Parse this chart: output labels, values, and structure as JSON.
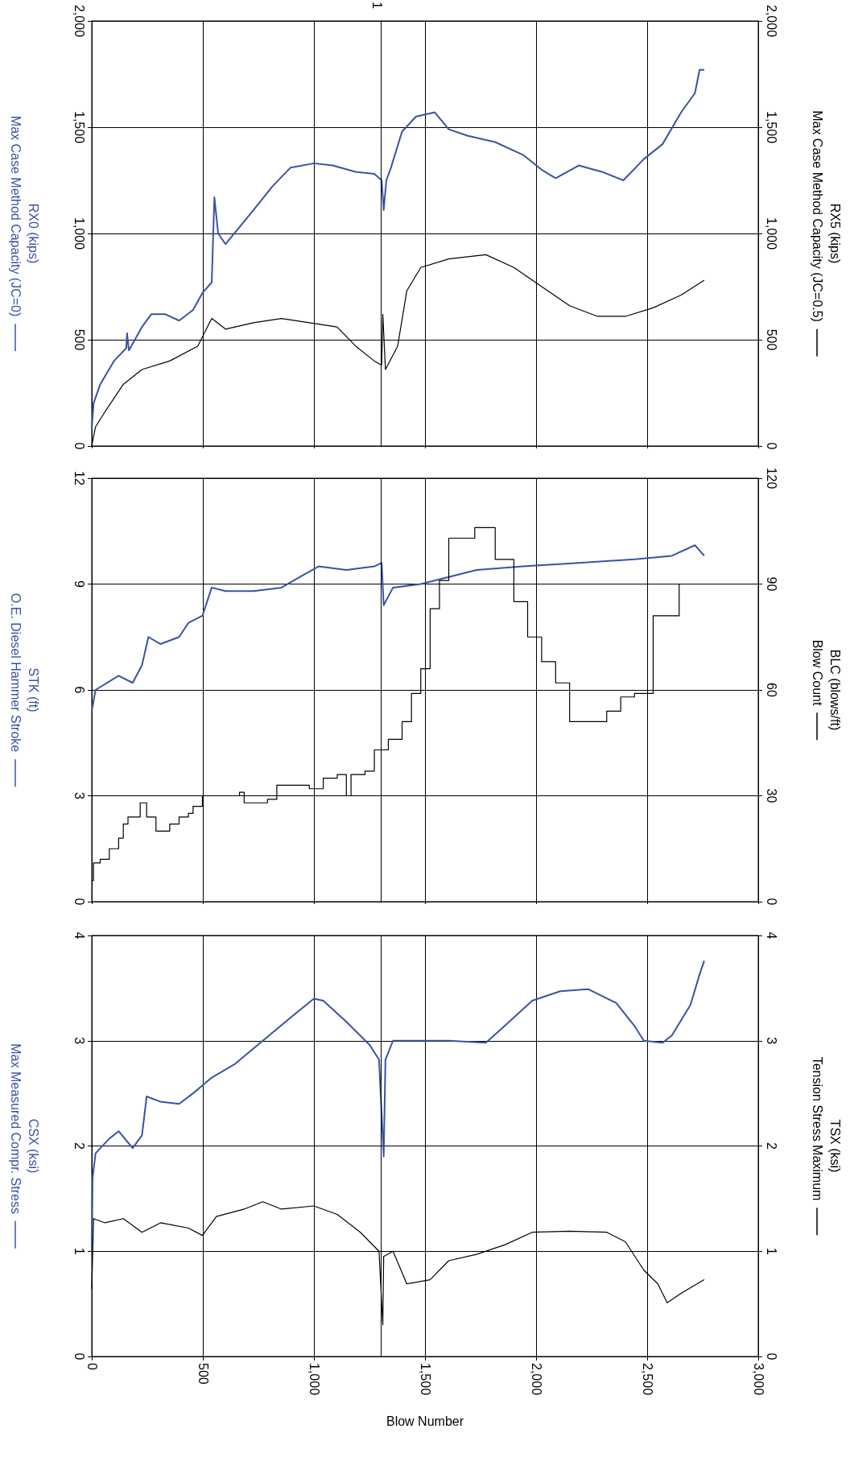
{
  "chart_data": [
    {
      "type": "line",
      "xlim": [
        0,
        3000
      ],
      "xticks": [
        {
          "value": 0,
          "label": null
        },
        {
          "value": 500,
          "label": null
        },
        {
          "value": 1000,
          "label": null
        },
        {
          "value": 1500,
          "label": null
        },
        {
          "value": 2000,
          "label": null
        },
        {
          "value": 2500,
          "label": null
        },
        {
          "value": 3000,
          "label": null
        }
      ],
      "tick_labels": "y",
      "ylabel": "RX0 (kips)",
      "y2label": "RX5 (kips)",
      "ylim": [
        0,
        2000
      ],
      "yticks": [
        0,
        500,
        {
          "value": 1000,
          "label": "1,000"
        },
        {
          "value": 1500,
          "label": "1,500"
        },
        {
          "value": 2000,
          "label": "2,000"
        }
      ],
      "y2lim": [
        0,
        2000
      ],
      "y2ticks": [
        0,
        500,
        {
          "value": 1000,
          "label": "1,000"
        },
        {
          "value": 1500,
          "label": "1,500"
        },
        {
          "value": 2000,
          "label": "2,000"
        }
      ],
      "grid": true,
      "ref_lines": [
        {
          "axis": "x",
          "value": 1300
        }
      ],
      "annotations": [
        "1"
      ],
      "series": [
        {
          "name": "Max Case Method Capacity (JC=0)",
          "color": "#3953a4",
          "x": [
            0,
            8,
            38,
            100,
            155,
            159,
            167,
            226,
            268,
            331,
            393,
            456,
            498,
            540,
            552,
            569,
            602,
            665,
            728,
            812,
            895,
            1000,
            1084,
            1188,
            1272,
            1305,
            1314,
            1326,
            1347,
            1397,
            1460,
            1544,
            1607,
            1690,
            1816,
            1941,
            2025,
            2088,
            2192,
            2297,
            2393,
            2485,
            2569,
            2653,
            2715,
            2736,
            2757
          ],
          "values": [
            80,
            200,
            290,
            400,
            460,
            530,
            450,
            560,
            620,
            620,
            590,
            640,
            720,
            770,
            1170,
            1000,
            950,
            1030,
            1110,
            1220,
            1310,
            1330,
            1320,
            1290,
            1280,
            1250,
            1110,
            1250,
            1310,
            1480,
            1550,
            1570,
            1490,
            1460,
            1430,
            1370,
            1300,
            1260,
            1320,
            1290,
            1250,
            1350,
            1420,
            1570,
            1660,
            1770,
            1770
          ]
        },
        {
          "name": "Max Case Method Capacity (JC=0.5)",
          "color": "#000000",
          "axis": "y2",
          "x": [
            0,
            17,
            59,
            142,
            226,
            351,
            477,
            540,
            602,
            728,
            854,
            979,
            1104,
            1188,
            1272,
            1305,
            1310,
            1322,
            1377,
            1418,
            1481,
            1607,
            1774,
            1900,
            2025,
            2151,
            2276,
            2402,
            2527,
            2653,
            2757
          ],
          "values": [
            0,
            90,
            160,
            290,
            360,
            400,
            470,
            600,
            550,
            580,
            600,
            580,
            560,
            470,
            400,
            380,
            620,
            360,
            470,
            730,
            840,
            880,
            900,
            840,
            750,
            660,
            610,
            610,
            650,
            710,
            780
          ]
        }
      ]
    },
    {
      "type": "line",
      "xlim": [
        0,
        3000
      ],
      "xticks": [
        {
          "value": 0,
          "label": null
        },
        {
          "value": 500,
          "label": null
        },
        {
          "value": 1000,
          "label": null
        },
        {
          "value": 1500,
          "label": null
        },
        {
          "value": 2000,
          "label": null
        },
        {
          "value": 2500,
          "label": null
        },
        {
          "value": 3000,
          "label": null
        }
      ],
      "tick_labels": "y",
      "ylabel": "STK (ft)",
      "y2label": "BLC (blows/ft)",
      "ylim": [
        0,
        12
      ],
      "yticks": [
        0,
        3,
        6,
        9,
        12
      ],
      "y2lim": [
        0,
        120
      ],
      "y2ticks": [
        0,
        30,
        60,
        90,
        120
      ],
      "grid": true,
      "ref_lines": [
        {
          "axis": "x",
          "value": 1300
        }
      ],
      "series": [
        {
          "name": "O.E. Diesel Hammer Stroke",
          "color": "#3953a4",
          "x": [
            0,
            17,
            121,
            184,
            226,
            255,
            310,
            393,
            435,
            498,
            540,
            602,
            728,
            854,
            937,
            1021,
            1146,
            1272,
            1305,
            1314,
            1356,
            1481,
            1607,
            1732,
            1941,
            2192,
            2443,
            2611,
            2715,
            2757
          ],
          "values": [
            5.4,
            6.0,
            6.4,
            6.2,
            6.7,
            7.5,
            7.3,
            7.5,
            7.9,
            8.1,
            8.9,
            8.8,
            8.8,
            8.9,
            9.2,
            9.5,
            9.4,
            9.5,
            9.6,
            8.4,
            8.9,
            9.0,
            9.2,
            9.4,
            9.5,
            9.6,
            9.7,
            9.8,
            10.1,
            9.8
          ]
        },
        {
          "name": "Blow Count",
          "color": "#000000",
          "type": "step",
          "axis": "y2",
          "x": [
            0,
            8,
            38,
            79,
            121,
            142,
            163,
            218,
            247,
            289,
            351,
            393,
            435,
            456,
            498,
            665,
            686,
            791,
            833,
            979,
            1042,
            1105,
            1146,
            1167,
            1230,
            1272,
            1335,
            1397,
            1439,
            1481,
            1523,
            1565,
            1607,
            1724,
            1816,
            1900,
            1962,
            2025,
            2088,
            2151,
            2318,
            2381,
            2443,
            2527,
            2644,
            2757
          ],
          "values": [
            6,
            11,
            12,
            15,
            18,
            22,
            24,
            28,
            24,
            20,
            22,
            24,
            25,
            27,
            30,
            31,
            28,
            29,
            33,
            32,
            35,
            36,
            30,
            36,
            37,
            43,
            46,
            51,
            59,
            66,
            83,
            91,
            103,
            106,
            97,
            85,
            75,
            68,
            62,
            51,
            54,
            58,
            59,
            81,
            90,
            90
          ]
        }
      ]
    },
    {
      "type": "line",
      "xlim": [
        0,
        3000
      ],
      "xticks": [
        0,
        500,
        {
          "value": 1000,
          "label": "1,000"
        },
        {
          "value": 1500,
          "label": "1,500"
        },
        {
          "value": 2000,
          "label": "2,000"
        },
        {
          "value": 2500,
          "label": "2,500"
        },
        {
          "value": 3000,
          "label": "3,000"
        }
      ],
      "xlabel": "Blow Number",
      "ylabel": "CSX (ksi)",
      "y2label": "TSX (ksi)",
      "ylim": [
        0,
        4
      ],
      "yticks": [
        0,
        1,
        2,
        3,
        4
      ],
      "y2lim": [
        0,
        4
      ],
      "y2ticks": [
        0,
        1,
        2,
        3,
        4
      ],
      "grid": true,
      "ref_lines": [
        {
          "axis": "x",
          "value": 1300
        }
      ],
      "series": [
        {
          "name": "Max Measured Compr. Stress",
          "color": "#3953a4",
          "x": [
            0,
            4,
            17,
            79,
            121,
            184,
            226,
            247,
            310,
            393,
            456,
            540,
            645,
            770,
            895,
            1000,
            1042,
            1146,
            1251,
            1293,
            1314,
            1322,
            1356,
            1481,
            1607,
            1774,
            1858,
            1983,
            2109,
            2234,
            2360,
            2443,
            2485,
            2569,
            2611,
            2695,
            2736,
            2757
          ],
          "values": [
            1.0,
            1.7,
            1.93,
            2.07,
            2.14,
            1.98,
            2.1,
            2.47,
            2.42,
            2.4,
            2.5,
            2.65,
            2.78,
            3.0,
            3.22,
            3.4,
            3.38,
            3.18,
            2.96,
            2.82,
            1.9,
            2.82,
            3.0,
            3.0,
            3.0,
            2.98,
            3.14,
            3.38,
            3.47,
            3.49,
            3.36,
            3.14,
            3.0,
            2.98,
            3.05,
            3.34,
            3.63,
            3.76
          ]
        },
        {
          "name": "Tension Stress Maximum",
          "color": "#000000",
          "axis": "y2",
          "x": [
            0,
            8,
            59,
            142,
            226,
            310,
            435,
            498,
            561,
            686,
            770,
            854,
            1000,
            1105,
            1209,
            1293,
            1310,
            1314,
            1356,
            1418,
            1523,
            1607,
            1732,
            1858,
            1983,
            2151,
            2318,
            2402,
            2485,
            2548,
            2590,
            2653,
            2757
          ],
          "values": [
            0.64,
            1.31,
            1.27,
            1.31,
            1.18,
            1.27,
            1.22,
            1.15,
            1.33,
            1.4,
            1.47,
            1.4,
            1.43,
            1.35,
            1.18,
            1.0,
            0.3,
            0.95,
            1.0,
            0.69,
            0.73,
            0.91,
            0.97,
            1.06,
            1.18,
            1.19,
            1.18,
            1.09,
            0.82,
            0.69,
            0.51,
            0.6,
            0.73
          ]
        }
      ]
    }
  ]
}
